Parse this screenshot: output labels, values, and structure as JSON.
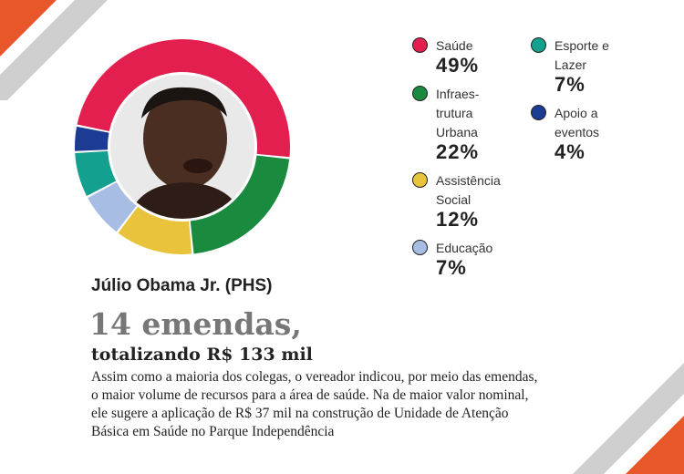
{
  "colors": {
    "corner_orange": "#e8572a",
    "corner_stripe": "#cfcfcf"
  },
  "photo": {
    "icon": "portrait-photo"
  },
  "chart_data": {
    "type": "pie",
    "variant": "donut",
    "categories": [
      "Saúde",
      "Infraestrutura Urbana",
      "Assistência Social",
      "Educação",
      "Esporte e Lazer",
      "Apoio a eventos"
    ],
    "values": [
      49,
      22,
      12,
      7,
      7,
      4
    ],
    "colors": [
      "#e21f4e",
      "#1a8a3e",
      "#e9c33b",
      "#a8bde3",
      "#13a08e",
      "#1c3c94"
    ],
    "title": "",
    "legend_placement": "right"
  },
  "legend": {
    "left": [
      {
        "name": "Saúde",
        "value": "49%",
        "color": "#e21f4e"
      },
      {
        "name": "Infraes-\ntrutura\nUrbana",
        "value": "22%",
        "color": "#1a8a3e"
      },
      {
        "name": "Assistência\nSocial",
        "value": "12%",
        "color": "#e9c33b"
      },
      {
        "name": "Educação",
        "value": "7%",
        "color": "#a8bde3"
      }
    ],
    "right": [
      {
        "name": "Esporte e\nLazer",
        "value": "7%",
        "color": "#13a08e"
      },
      {
        "name": "Apoio a\neventos",
        "value": "4%",
        "color": "#1c3c94"
      }
    ]
  },
  "text": {
    "name": "Júlio Obama Jr. (PHS)",
    "headline": "14 emendas,",
    "subhead": "totalizando R$ 133 mil",
    "body_lines": [
      "Assim como a maioria dos colegas, o vereador indicou, por meio das emendas,",
      "o maior volume de recursos para a área de saúde. Na de maior valor nominal,",
      "ele sugere a aplicação de R$ 37 mil na construção de Unidade de Atenção",
      "Básica em Saúde no Parque Independência"
    ]
  }
}
